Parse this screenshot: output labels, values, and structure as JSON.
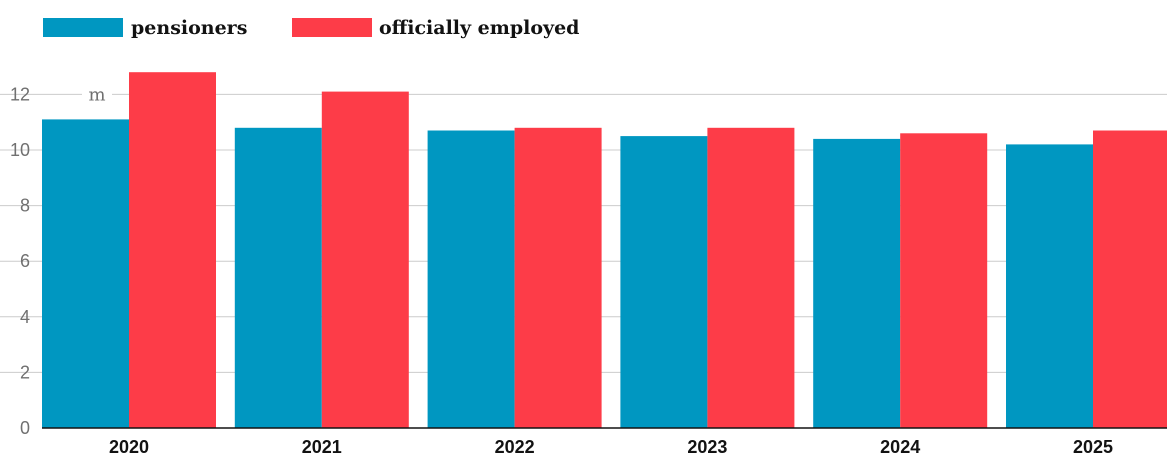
{
  "chart_data": {
    "type": "bar",
    "title": "",
    "xlabel": "",
    "ylabel": "",
    "unit": "m",
    "categories": [
      "2020",
      "2021",
      "2022",
      "2023",
      "2024",
      "2025"
    ],
    "series": [
      {
        "name": "pensioners",
        "color": "#0097c1",
        "values": [
          11.1,
          10.8,
          10.7,
          10.5,
          10.4,
          10.2
        ]
      },
      {
        "name": "officially employed",
        "color": "#fd3c48",
        "values": [
          12.8,
          12.1,
          10.8,
          10.8,
          10.6,
          10.7
        ]
      }
    ],
    "ylim": [
      0,
      13
    ],
    "yticks": [
      0,
      2,
      4,
      6,
      8,
      10,
      12
    ],
    "grid": true,
    "legend_position": "top-left"
  }
}
